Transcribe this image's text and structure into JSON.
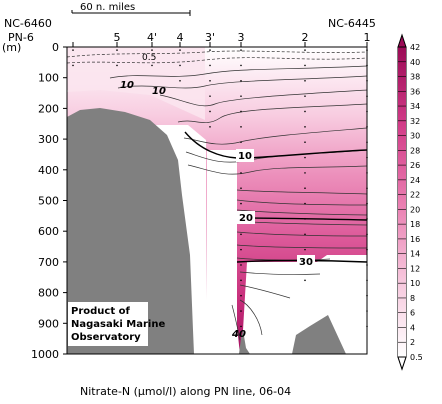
{
  "chart_data": {
    "type": "contour",
    "title": "Nitrate-N (µmol/l) along PN line, 06-04",
    "ylabel": "(m)",
    "y_reverse": true,
    "ylim": [
      0,
      1000
    ],
    "y_ticks": [
      0,
      100,
      200,
      300,
      400,
      500,
      600,
      700,
      800,
      900,
      1000
    ],
    "x_stations": [
      "PN-6",
      "5",
      "4'",
      "4",
      "3'",
      "3",
      "2",
      "1"
    ],
    "top_labels": {
      "left": "NC-6460",
      "right": "NC-6445"
    },
    "scale_bar_label": "60 n. miles",
    "credit": [
      "Product of",
      "Nagasaki Marine",
      "Observatory"
    ],
    "contour_labels": [
      "0.5",
      "10",
      "10",
      "10",
      "20",
      "30",
      "40"
    ],
    "colorbar": {
      "min": 0.5,
      "max": 42,
      "levels": [
        0.5,
        2,
        4,
        6,
        8,
        10,
        12,
        14,
        16,
        18,
        20,
        22,
        24,
        26,
        28,
        30,
        32,
        34,
        36,
        38,
        40,
        42
      ],
      "color_low": "#ffffff",
      "color_high": "#9b0a55"
    },
    "profile_samples": {
      "depth": [
        0,
        50,
        100,
        150,
        200,
        250,
        300,
        350,
        400,
        450,
        500,
        550,
        600,
        650,
        700,
        750,
        800,
        850,
        900
      ],
      "station_3": [
        0.5,
        1,
        3,
        6,
        8,
        9,
        10,
        12,
        14,
        17,
        20,
        23,
        26,
        28,
        31,
        33,
        35,
        37,
        39
      ],
      "station_2": [
        0.5,
        1,
        2,
        4,
        6,
        8,
        10,
        12,
        14,
        17,
        19,
        22,
        25,
        27,
        30,
        32,
        34,
        null,
        null
      ]
    },
    "colors": {
      "land": "#808080",
      "line": "#000000"
    }
  }
}
